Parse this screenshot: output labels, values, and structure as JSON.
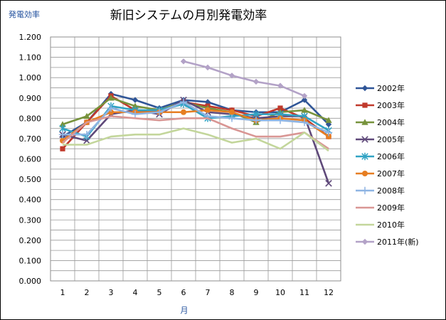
{
  "chart_data": {
    "type": "line",
    "title": "新旧システムの月別発電効率",
    "ylabel": "発電効率",
    "xlabel": "月",
    "categories": [
      "1",
      "2",
      "3",
      "4",
      "5",
      "6",
      "7",
      "8",
      "9",
      "10",
      "11",
      "12"
    ],
    "ylim": [
      0,
      1.2
    ],
    "ytick_step": 0.05,
    "yticks": [
      "0.000",
      "0.100",
      "0.200",
      "0.300",
      "0.400",
      "0.500",
      "0.600",
      "0.700",
      "0.800",
      "0.900",
      "1.000",
      "1.100",
      "1.200"
    ],
    "grid": true,
    "legend_position": "right",
    "series": [
      {
        "name": "2002年",
        "color": "#2f5597",
        "marker": "diamond",
        "values": [
          0.71,
          0.78,
          0.92,
          0.89,
          0.85,
          0.89,
          0.88,
          0.84,
          0.83,
          0.83,
          0.89,
          0.77
        ]
      },
      {
        "name": "2003年",
        "color": "#c0392b",
        "marker": "square",
        "values": [
          0.65,
          0.78,
          0.91,
          0.84,
          0.83,
          0.88,
          0.86,
          0.84,
          0.81,
          0.85,
          0.8,
          0.71
        ]
      },
      {
        "name": "2004年",
        "color": "#77933c",
        "marker": "triangle",
        "values": [
          0.77,
          0.81,
          0.9,
          0.86,
          0.84,
          0.88,
          0.85,
          0.83,
          0.78,
          0.83,
          0.84,
          0.79
        ]
      },
      {
        "name": "2005年",
        "color": "#5f497a",
        "marker": "x",
        "values": [
          0.72,
          0.69,
          0.82,
          0.84,
          0.82,
          0.89,
          0.83,
          0.82,
          0.8,
          0.81,
          0.81,
          0.48
        ]
      },
      {
        "name": "2006年",
        "color": "#31a3c4",
        "marker": "star",
        "values": [
          0.75,
          0.71,
          0.86,
          0.84,
          0.84,
          0.87,
          0.8,
          0.81,
          0.82,
          0.82,
          0.81,
          0.74
        ]
      },
      {
        "name": "2007年",
        "color": "#e67e22",
        "marker": "circle",
        "values": [
          0.69,
          0.78,
          0.83,
          0.83,
          0.83,
          0.83,
          0.84,
          0.83,
          0.79,
          0.8,
          0.79,
          0.71
        ]
      },
      {
        "name": "2008年",
        "color": "#8eb4e3",
        "marker": "plus",
        "values": [
          0.72,
          0.72,
          0.85,
          0.82,
          0.83,
          0.88,
          0.81,
          0.8,
          0.79,
          0.79,
          0.78,
          0.73
        ]
      },
      {
        "name": "2009年",
        "color": "#d99694",
        "marker": "none",
        "values": [
          0.68,
          0.78,
          0.81,
          0.8,
          0.79,
          0.8,
          0.8,
          0.75,
          0.71,
          0.71,
          0.73,
          0.65
        ]
      },
      {
        "name": "2010年",
        "color": "#c3d69b",
        "marker": "none",
        "values": [
          0.67,
          0.67,
          0.71,
          0.72,
          0.72,
          0.75,
          0.72,
          0.68,
          0.7,
          0.65,
          0.73,
          0.64
        ]
      },
      {
        "name": "2011年(新)",
        "color": "#b3a2c7",
        "marker": "diamond",
        "values": [
          null,
          null,
          null,
          null,
          null,
          1.08,
          1.05,
          1.01,
          0.98,
          0.96,
          0.91,
          null
        ]
      }
    ]
  }
}
